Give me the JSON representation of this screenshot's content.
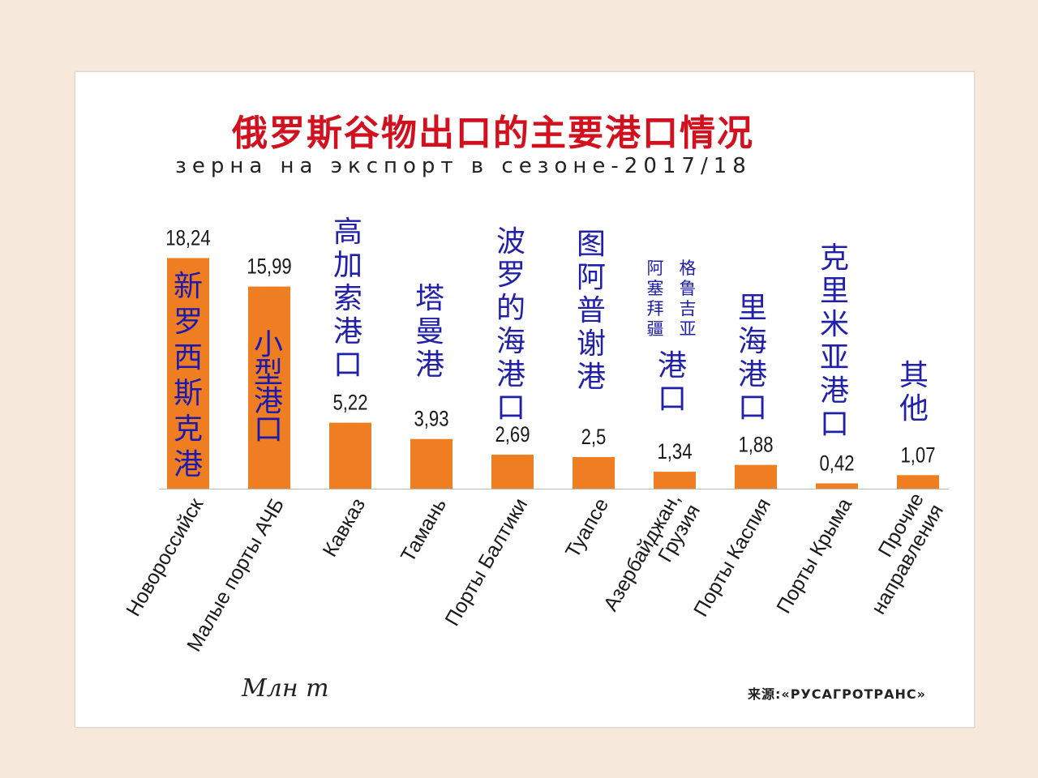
{
  "chart_data": {
    "type": "bar",
    "title": "俄罗斯谷物出口的主要港口情况",
    "subtitle": "зерна на экспорт в сезоне-2017/18",
    "ylabel": "Млн т",
    "ylim": [
      0,
      20
    ],
    "categories": [
      "Новороссийск",
      "Малые порты АЧБ",
      "Кавказ",
      "Тамань",
      "Порты Балтики",
      "Туапсе",
      "Азербайджан, Грузия",
      "Порты Каспия",
      "Порты Крыма",
      "Прочие направления"
    ],
    "values": [
      18.24,
      15.99,
      5.22,
      3.93,
      2.69,
      2.5,
      1.34,
      1.88,
      0.42,
      1.07
    ],
    "value_labels": [
      "18,24",
      "15,99",
      "5,22",
      "3,93",
      "2,69",
      "2,5",
      "1,34",
      "1,88",
      "0,42",
      "1,07"
    ],
    "category_label_lines": [
      [
        "Новороссийск"
      ],
      [
        "Малые порты АЧБ"
      ],
      [
        "Кавказ"
      ],
      [
        "Тамань"
      ],
      [
        "Порты Балтики"
      ],
      [
        "Туапсе"
      ],
      [
        "Азербайджан,",
        "Грузия"
      ],
      [
        "Порты Каспия"
      ],
      [
        "Порты Крыма"
      ],
      [
        "Прочие",
        "направления"
      ]
    ],
    "annotations": [
      "新罗西斯克港",
      "小型港口",
      "高加索港口",
      "塔曼港",
      "波罗的海港口",
      "图阿普谢港",
      "阿塞拜疆格鲁吉亚港口",
      "里海港口",
      "克里米亚港口",
      "其他"
    ],
    "annotation_columns": [
      [
        "新罗西斯克港"
      ],
      [
        "小型港口"
      ],
      [
        "高加索港口"
      ],
      [
        "塔曼港"
      ],
      [
        "波罗的海港口"
      ],
      [
        "图阿普谢港"
      ],
      [
        "阿塞拜疆",
        "格鲁吉亚",
        "港口"
      ],
      [
        "里海港口"
      ],
      [
        "克里米亚港口"
      ],
      [
        "其他"
      ]
    ],
    "bar_color": "#ef7d22",
    "annotation_color": "#2020a8",
    "annotation_on_bar_color": "#1a1ab0",
    "source": "来源:«РУСАГРОТРАНС»"
  }
}
